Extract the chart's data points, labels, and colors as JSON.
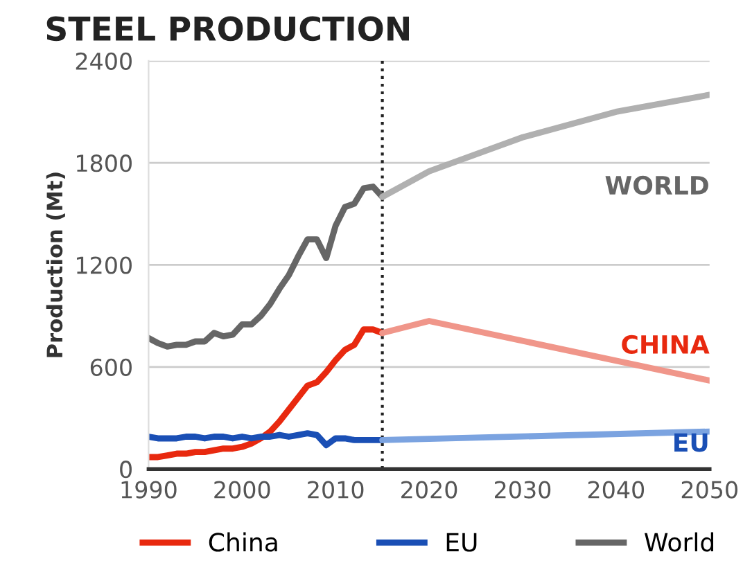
{
  "chart_data": {
    "type": "line",
    "title": "STEEL PRODUCTION",
    "ylabel": "Production (Mt)",
    "xlim": [
      1990,
      2050
    ],
    "xticks": [
      1990,
      2000,
      2010,
      2020,
      2030,
      2040,
      2050
    ],
    "ylim": [
      0,
      2400
    ],
    "yticks": [
      0,
      600,
      1200,
      1800,
      2400
    ],
    "grid": "y",
    "legend": "bottom",
    "line_style": "solid",
    "marker": "none",
    "series": [
      {
        "name": "China",
        "color": "#e8290f",
        "x": [
          1990,
          1991,
          1992,
          1993,
          1994,
          1995,
          1996,
          1997,
          1998,
          1999,
          2000,
          2001,
          2002,
          2003,
          2004,
          2005,
          2006,
          2007,
          2008,
          2009,
          2010,
          2011,
          2012,
          2013,
          2014,
          2015
        ],
        "values": [
          70,
          70,
          80,
          90,
          90,
          100,
          100,
          110,
          120,
          120,
          130,
          150,
          180,
          220,
          280,
          350,
          420,
          490,
          510,
          570,
          640,
          700,
          730,
          820,
          820,
          800
        ]
      },
      {
        "name": "EU",
        "color": "#1a4fb5",
        "x": [
          1990,
          1991,
          1992,
          1993,
          1994,
          1995,
          1996,
          1997,
          1998,
          1999,
          2000,
          2001,
          2002,
          2003,
          2004,
          2005,
          2006,
          2007,
          2008,
          2009,
          2010,
          2011,
          2012,
          2013,
          2014,
          2015
        ],
        "values": [
          190,
          180,
          180,
          180,
          190,
          190,
          180,
          190,
          190,
          180,
          190,
          180,
          190,
          190,
          200,
          190,
          200,
          210,
          200,
          140,
          180,
          180,
          170,
          170,
          170,
          170
        ]
      },
      {
        "name": "World",
        "color": "#666666",
        "x": [
          1990,
          1991,
          1992,
          1993,
          1994,
          1995,
          1996,
          1997,
          1998,
          1999,
          2000,
          2001,
          2002,
          2003,
          2004,
          2005,
          2006,
          2007,
          2008,
          2009,
          2010,
          2011,
          2012,
          2013,
          2014,
          2015
        ],
        "values": [
          770,
          740,
          720,
          730,
          730,
          750,
          750,
          800,
          780,
          790,
          850,
          850,
          900,
          970,
          1060,
          1140,
          1250,
          1350,
          1350,
          1240,
          1430,
          1540,
          1560,
          1650,
          1660,
          1600
        ]
      },
      {
        "color": "#f0968a",
        "x": [
          2015,
          2020,
          2050
        ],
        "values": [
          800,
          870,
          520
        ]
      },
      {
        "color": "#7ba3e0",
        "x": [
          2015,
          2050
        ],
        "values": [
          170,
          220
        ]
      },
      {
        "color": "#b0b0b0",
        "x": [
          2015,
          2020,
          2030,
          2040,
          2050
        ],
        "values": [
          1600,
          1750,
          1950,
          2100,
          2200
        ]
      }
    ],
    "ref_lines": [
      {
        "axis": "x",
        "value": 2015,
        "color": "#222222",
        "line_style": "dotted"
      }
    ],
    "annotations": [
      "CHINA",
      "EU",
      "WORLD"
    ]
  }
}
